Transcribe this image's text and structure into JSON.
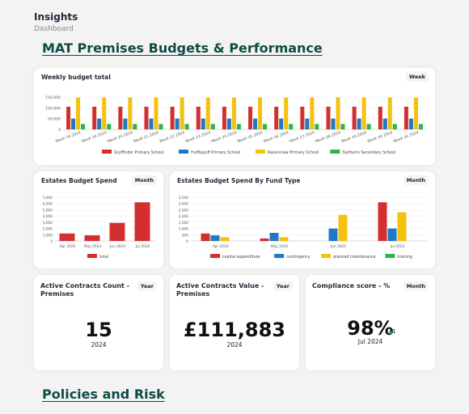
{
  "header": {
    "title": "Insights",
    "subtitle": "Dashboard"
  },
  "section1_title": "MAT Premises Budgets & Performance",
  "section2_title": "Policies and Risk",
  "colors": {
    "red": "#d32f2f",
    "blue": "#1f78c8",
    "yellow": "#f4c20d",
    "green": "#2db34a"
  },
  "weekly": {
    "title": "Weekly budget total",
    "filter": "Week",
    "legend": [
      "Gryffindor Primary School",
      "Hufflepuff Primary School",
      "Ravenclaw Primary School",
      "Slytherin Secondary School"
    ],
    "chart_data": {
      "type": "bar",
      "categories": [
        "Week 18 2024",
        "Week 19 2024",
        "Week 20 2024",
        "Week 21 2024",
        "Week 22 2024",
        "Week 23 2024",
        "Week 24 2024",
        "Week 25 2024",
        "Week 26 2024",
        "Week 27 2024",
        "Week 28 2024",
        "Week 29 2024",
        "Week 30 2024",
        "Week 31 2024"
      ],
      "yticks": [
        "150,000",
        "100,000",
        "50,000",
        "0"
      ],
      "ylim": [
        0,
        150000
      ],
      "series": [
        {
          "name": "Gryffindor Primary School",
          "values": [
            105000,
            105000,
            105000,
            105000,
            105000,
            105000,
            105000,
            105000,
            105000,
            105000,
            105000,
            105000,
            105000,
            105000
          ]
        },
        {
          "name": "Hufflepuff Primary School",
          "values": [
            50000,
            50000,
            50000,
            50000,
            50000,
            50000,
            50000,
            50000,
            50000,
            50000,
            50000,
            50000,
            50000,
            50000
          ]
        },
        {
          "name": "Ravenclaw Primary School",
          "values": [
            148000,
            148000,
            148000,
            148000,
            148000,
            148000,
            148000,
            148000,
            148000,
            148000,
            148000,
            148000,
            148000,
            148000
          ]
        },
        {
          "name": "Slytherin Secondary School",
          "values": [
            25000,
            25000,
            25000,
            25000,
            25000,
            25000,
            25000,
            25000,
            25000,
            25000,
            25000,
            25000,
            25000,
            25000
          ]
        }
      ]
    }
  },
  "estates": {
    "title": "Estates Budget Spend",
    "filter": "Month",
    "legend": [
      "total"
    ],
    "chart_data": {
      "type": "bar",
      "categories": [
        "Apr 2024",
        "May 2024",
        "Jun 2024",
        "Jul 2024"
      ],
      "yticks": [
        "7,000",
        "6,000",
        "5,000",
        "4,000",
        "3,000",
        "2,000",
        "1,000",
        "0"
      ],
      "ylim": [
        0,
        7000
      ],
      "series": [
        {
          "name": "total",
          "values": [
            1200,
            900,
            2900,
            6200
          ]
        }
      ]
    }
  },
  "fundtype": {
    "title": "Estates Budget Spend By Fund Type",
    "filter": "Month",
    "legend": [
      "capital expenditure",
      "contingency",
      "planned maintenance",
      "training"
    ],
    "chart_data": {
      "type": "bar",
      "categories": [
        "Apr 2024",
        "May 2024",
        "Jun 2024",
        "Jul 2024"
      ],
      "yticks": [
        "3,500",
        "3,000",
        "2,500",
        "2,000",
        "1,500",
        "1,000",
        "500",
        "0"
      ],
      "ylim": [
        0,
        3500
      ],
      "series": [
        {
          "name": "capital expenditure",
          "values": [
            600,
            200,
            0,
            3100
          ]
        },
        {
          "name": "contingency",
          "values": [
            450,
            650,
            1000,
            1000
          ]
        },
        {
          "name": "planned maintenance",
          "values": [
            300,
            300,
            2100,
            2300
          ]
        },
        {
          "name": "training",
          "values": [
            0,
            0,
            0,
            0
          ]
        }
      ]
    }
  },
  "kpis": [
    {
      "title": "Active Contracts Count - Premises",
      "filter": "Year",
      "value": "15",
      "sub": "2024"
    },
    {
      "title": "Active Contracts Value - Premises",
      "filter": "Year",
      "value": "£111,883",
      "sub": "2024"
    },
    {
      "title": "Compliance score - %",
      "filter": "Month",
      "value": "98%",
      "sub": "Jul 2024",
      "delta": "1"
    }
  ]
}
